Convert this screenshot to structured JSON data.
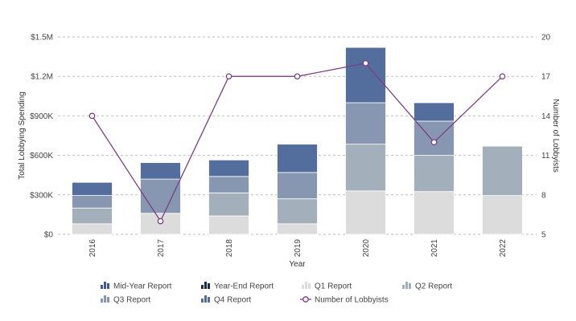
{
  "chart_data": {
    "type": "bar",
    "stacked": true,
    "title": "",
    "xlabel": "Year",
    "ylabel": "Total Lobbying Spending",
    "y2label": "Number of Lobbyists",
    "categories": [
      "2016",
      "2017",
      "2018",
      "2019",
      "2020",
      "2021",
      "2022"
    ],
    "ylim": [
      0,
      1500000
    ],
    "yticks": [
      0,
      300000,
      600000,
      900000,
      1200000,
      1500000
    ],
    "ytick_labels": [
      "$0",
      "$300K",
      "$600K",
      "$900K",
      "$1.2M",
      "$1.5M"
    ],
    "y2lim": [
      5,
      20
    ],
    "y2ticks": [
      5,
      8,
      11,
      14,
      17,
      20
    ],
    "y2tick_labels": [
      "5",
      "8",
      "11",
      "14",
      "17",
      "20"
    ],
    "grid": true,
    "series": [
      {
        "name": "Mid-Year Report",
        "kind": "bar",
        "color": "#3d5a93",
        "values": [
          0,
          0,
          0,
          0,
          0,
          0,
          0
        ]
      },
      {
        "name": "Year-End Report",
        "kind": "bar",
        "color": "#1b2a4a",
        "values": [
          0,
          0,
          0,
          0,
          0,
          0,
          0
        ]
      },
      {
        "name": "Q1 Report",
        "kind": "bar",
        "color": "#dcdcdc",
        "values": [
          80000,
          160000,
          140000,
          80000,
          330000,
          325000,
          295000
        ]
      },
      {
        "name": "Q2 Report",
        "kind": "bar",
        "color": "#a3afbb",
        "values": [
          120000,
          0,
          175000,
          190000,
          355000,
          275000,
          375000
        ]
      },
      {
        "name": "Q3 Report",
        "kind": "bar",
        "color": "#8796b1",
        "values": [
          95000,
          260000,
          125000,
          200000,
          315000,
          260000,
          0
        ]
      },
      {
        "name": "Q4 Report",
        "kind": "bar",
        "color": "#536e9d",
        "values": [
          100000,
          125000,
          125000,
          215000,
          420000,
          140000,
          0
        ]
      },
      {
        "name": "Number of Lobbyists",
        "kind": "line",
        "axis": "right",
        "color": "#7b3f86",
        "values": [
          14,
          6,
          17,
          17,
          18,
          12,
          17
        ]
      }
    ],
    "legend": {
      "position": "bottom",
      "rows": [
        [
          "Mid-Year Report",
          "Year-End Report",
          "Q1 Report",
          "Q2 Report"
        ],
        [
          "Q3 Report",
          "Q4 Report",
          "Number of Lobbyists"
        ]
      ]
    }
  }
}
